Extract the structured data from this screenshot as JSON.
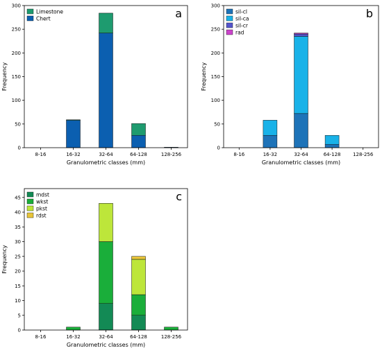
{
  "chart_data": [
    {
      "type": "bar",
      "stacked": true,
      "panel_label": "a",
      "title": "",
      "xlabel": "Granulometric classes (mm)",
      "ylabel": "Frequency",
      "categories": [
        "8-16",
        "16-32",
        "32-64",
        "64-128",
        "128-256"
      ],
      "ylim": [
        0,
        300
      ],
      "yticks": [
        0,
        50,
        100,
        150,
        200,
        250,
        300
      ],
      "grid": false,
      "legend_position": "top-left",
      "series": [
        {
          "name": "Chert",
          "values": [
            0,
            58,
            242,
            26,
            1
          ],
          "color": "#0b5fb0"
        },
        {
          "name": "Limestone",
          "values": [
            0,
            1,
            42,
            25,
            0
          ],
          "color": "#1e9b6f"
        }
      ],
      "legend_order": [
        "Limestone",
        "Chert"
      ]
    },
    {
      "type": "bar",
      "stacked": true,
      "panel_label": "b",
      "title": "",
      "xlabel": "Granulometric classes (mm)",
      "ylabel": "Frequency",
      "categories": [
        "8-16",
        "16-32",
        "32-64",
        "64-128",
        "128-256"
      ],
      "ylim": [
        0,
        300
      ],
      "yticks": [
        0,
        50,
        100,
        150,
        200,
        250,
        300
      ],
      "grid": false,
      "legend_position": "top-left",
      "series": [
        {
          "name": "sil-cl",
          "values": [
            0,
            26,
            72,
            7,
            0
          ],
          "color": "#1e73b8"
        },
        {
          "name": "sil-ca",
          "values": [
            0,
            32,
            163,
            19,
            0
          ],
          "color": "#19b2e8"
        },
        {
          "name": "sil-cr",
          "values": [
            0,
            0,
            5,
            0,
            0
          ],
          "color": "#5555cc"
        },
        {
          "name": "rad",
          "values": [
            0,
            0,
            2,
            0,
            0
          ],
          "color": "#cc44cc"
        }
      ],
      "legend_order": [
        "sil-cl",
        "sil-ca",
        "sil-cr",
        "rad"
      ]
    },
    {
      "type": "bar",
      "stacked": true,
      "panel_label": "c",
      "title": "",
      "xlabel": "Granulometric classes (mm)",
      "ylabel": "Frequency",
      "categories": [
        "8-16",
        "16-32",
        "32-64",
        "64-128",
        "128-256"
      ],
      "ylim": [
        0,
        48
      ],
      "yticks": [
        0,
        5,
        10,
        15,
        20,
        25,
        30,
        35,
        40,
        45
      ],
      "grid": false,
      "legend_position": "top-left",
      "series": [
        {
          "name": "mdst",
          "values": [
            0,
            0,
            9,
            5,
            0
          ],
          "color": "#138a55"
        },
        {
          "name": "wkst",
          "values": [
            0,
            1,
            21,
            7,
            1
          ],
          "color": "#1aae3a"
        },
        {
          "name": "pkst",
          "values": [
            0,
            0,
            13,
            12,
            0
          ],
          "color": "#bde63a"
        },
        {
          "name": "rdst",
          "values": [
            0,
            0,
            0,
            1,
            0
          ],
          "color": "#e8c43a"
        }
      ],
      "legend_order": [
        "mdst",
        "wkst",
        "pkst",
        "rdst"
      ]
    }
  ]
}
